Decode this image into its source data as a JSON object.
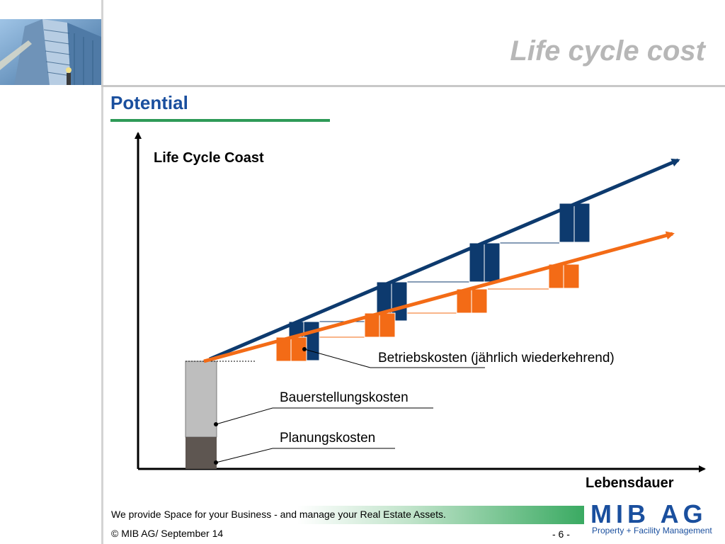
{
  "header": {
    "title": "Life cycle cost",
    "section_title": "Potential"
  },
  "diagram": {
    "y_axis_label": "Life Cycle Coast",
    "x_axis_label": "Lebensdauer",
    "labels": {
      "operating_costs": "Betriebskosten",
      "operating_costs_note": " (jährlich wiederkehrend)",
      "construction_costs": "Bauerstellungskosten",
      "planning_costs": "Planungskosten"
    },
    "colors": {
      "operating_high": "#0d3a6e",
      "operating_low": "#f36b16",
      "construction": "#bebebe",
      "planning": "#5e5651",
      "axis": "#000000"
    }
  },
  "footer": {
    "tagline": "We provide Space for your Business -  and manage your Real Estate Assets.",
    "copyright": "© MIB AG/ September 14",
    "page": "- 6 -",
    "logo_main": "MIB AG",
    "logo_sub": "Property + Facility Management"
  }
}
